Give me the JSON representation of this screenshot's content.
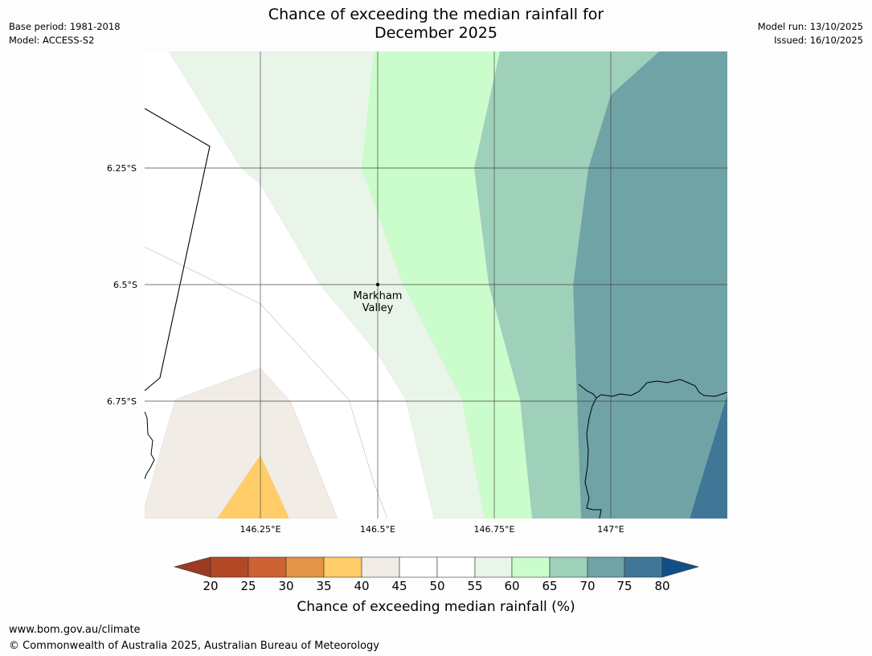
{
  "header": {
    "title_line1": "Chance of exceeding the median rainfall for",
    "title_line2": "December 2025",
    "base_period": "Base period: 1981-2018",
    "model": "Model: ACCESS-S2",
    "model_run": "Model run: 13/10/2025",
    "issued": "Issued: 16/10/2025"
  },
  "map": {
    "lat_labels": [
      "6.25°S",
      "6.5°S",
      "6.75°S"
    ],
    "lon_labels": [
      "146.25°E",
      "146.5°E",
      "146.75°E",
      "147°E"
    ],
    "place": {
      "name_line1": "Markham",
      "name_line2": "Valley"
    }
  },
  "legend": {
    "title": "Chance of exceeding median rainfall (%)",
    "ticks": [
      "20",
      "25",
      "30",
      "35",
      "40",
      "45",
      "50",
      "55",
      "60",
      "65",
      "70",
      "75",
      "80"
    ],
    "colors": {
      "below20": "#9b3b24",
      "c20_25": "#b34826",
      "c25_30": "#cd6233",
      "c30_35": "#e39446",
      "c35_40": "#fecd69",
      "c40_45": "#f1ece6",
      "c45_55": "#ffffff",
      "c55_60": "#eaf5ea",
      "c60_65": "#cbfccb",
      "c65_70": "#9ed0ba",
      "c70_75": "#6fa3a6",
      "c75_80": "#407797",
      "above80": "#124f87"
    }
  },
  "footer": {
    "url": "www.bom.gov.au/climate",
    "copyright": "© Commonwealth of Australia 2025, Australian Bureau of Meteorology"
  }
}
